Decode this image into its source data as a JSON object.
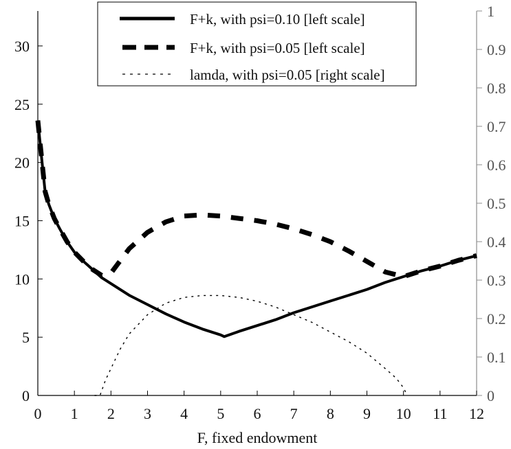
{
  "chart_data": {
    "type": "line",
    "title": "",
    "xlabel": "F, fixed endowment",
    "ylabel_left": "",
    "ylabel_right": "",
    "x_ticks": [
      "0",
      "1",
      "2",
      "3",
      "4",
      "5",
      "6",
      "7",
      "8",
      "9",
      "10",
      "11",
      "12"
    ],
    "y_left_ticks": [
      "0",
      "5",
      "10",
      "15",
      "20",
      "25",
      "30"
    ],
    "y_right_ticks": [
      "0",
      "0.1",
      "0.2",
      "0.3",
      "0.4",
      "0.5",
      "0.6",
      "0.7",
      "0.8",
      "0.9",
      "1"
    ],
    "xlim": [
      0,
      12
    ],
    "ylim_left": [
      0,
      33
    ],
    "ylim_right": [
      0,
      1
    ],
    "grid": false,
    "legend_position": "top-center",
    "series": [
      {
        "name": "F+k, with psi=0.10 [left scale]",
        "axis": "left",
        "style": "solid-thick",
        "color": "#000000",
        "x": [
          0.0,
          0.1,
          0.2,
          0.3,
          0.45,
          0.6,
          0.8,
          1.0,
          1.25,
          1.5,
          1.75,
          2.0,
          2.5,
          3.0,
          3.5,
          4.0,
          4.5,
          5.0,
          5.1,
          5.5,
          6.0,
          6.5,
          7.0,
          7.5,
          8.0,
          8.5,
          9.0,
          9.5,
          10.0,
          10.5,
          11.0,
          11.5,
          12.0
        ],
        "y": [
          23.6,
          20.5,
          17.5,
          16.4,
          15.2,
          14.3,
          13.2,
          12.3,
          11.5,
          10.8,
          10.1,
          9.6,
          8.6,
          7.8,
          7.0,
          6.3,
          5.7,
          5.2,
          5.05,
          5.5,
          6.0,
          6.5,
          7.1,
          7.6,
          8.1,
          8.6,
          9.1,
          9.7,
          10.2,
          10.7,
          11.1,
          11.6,
          12.0
        ]
      },
      {
        "name": "F+k, with psi=0.05 [left scale]",
        "axis": "left",
        "style": "dashed-thick",
        "color": "#000000",
        "x": [
          0.0,
          0.1,
          0.2,
          0.3,
          0.45,
          0.6,
          0.8,
          1.0,
          1.25,
          1.5,
          1.75,
          2.0,
          2.5,
          3.0,
          3.5,
          4.0,
          4.5,
          5.0,
          5.5,
          6.0,
          6.5,
          7.0,
          7.5,
          8.0,
          8.5,
          9.0,
          9.5,
          10.0,
          10.5,
          11.0,
          11.5,
          12.0
        ],
        "y": [
          23.6,
          20.5,
          17.5,
          16.4,
          15.2,
          14.3,
          13.2,
          12.3,
          11.5,
          10.8,
          10.3,
          10.5,
          12.6,
          14.0,
          14.9,
          15.4,
          15.5,
          15.4,
          15.2,
          15.0,
          14.7,
          14.3,
          13.8,
          13.2,
          12.4,
          11.5,
          10.6,
          10.2,
          10.7,
          11.1,
          11.6,
          12.0
        ]
      },
      {
        "name": "lamda, with psi=0.05 [right scale]",
        "axis": "right",
        "style": "dotted-thin",
        "color": "#000000",
        "x": [
          1.55,
          1.7,
          1.85,
          2.0,
          2.25,
          2.5,
          3.0,
          3.5,
          4.0,
          4.5,
          5.0,
          5.5,
          6.0,
          6.5,
          7.0,
          7.5,
          8.0,
          8.5,
          9.0,
          9.5,
          9.8,
          10.0,
          10.1
        ],
        "y": [
          0.0,
          0.0,
          0.04,
          0.07,
          0.12,
          0.16,
          0.21,
          0.24,
          0.255,
          0.26,
          0.26,
          0.255,
          0.245,
          0.23,
          0.21,
          0.19,
          0.165,
          0.14,
          0.11,
          0.07,
          0.045,
          0.02,
          0.0
        ]
      }
    ],
    "colors": {
      "axis": "#000000",
      "right_axis": "#8c8c8c",
      "right_tick_text": "#555555"
    }
  }
}
